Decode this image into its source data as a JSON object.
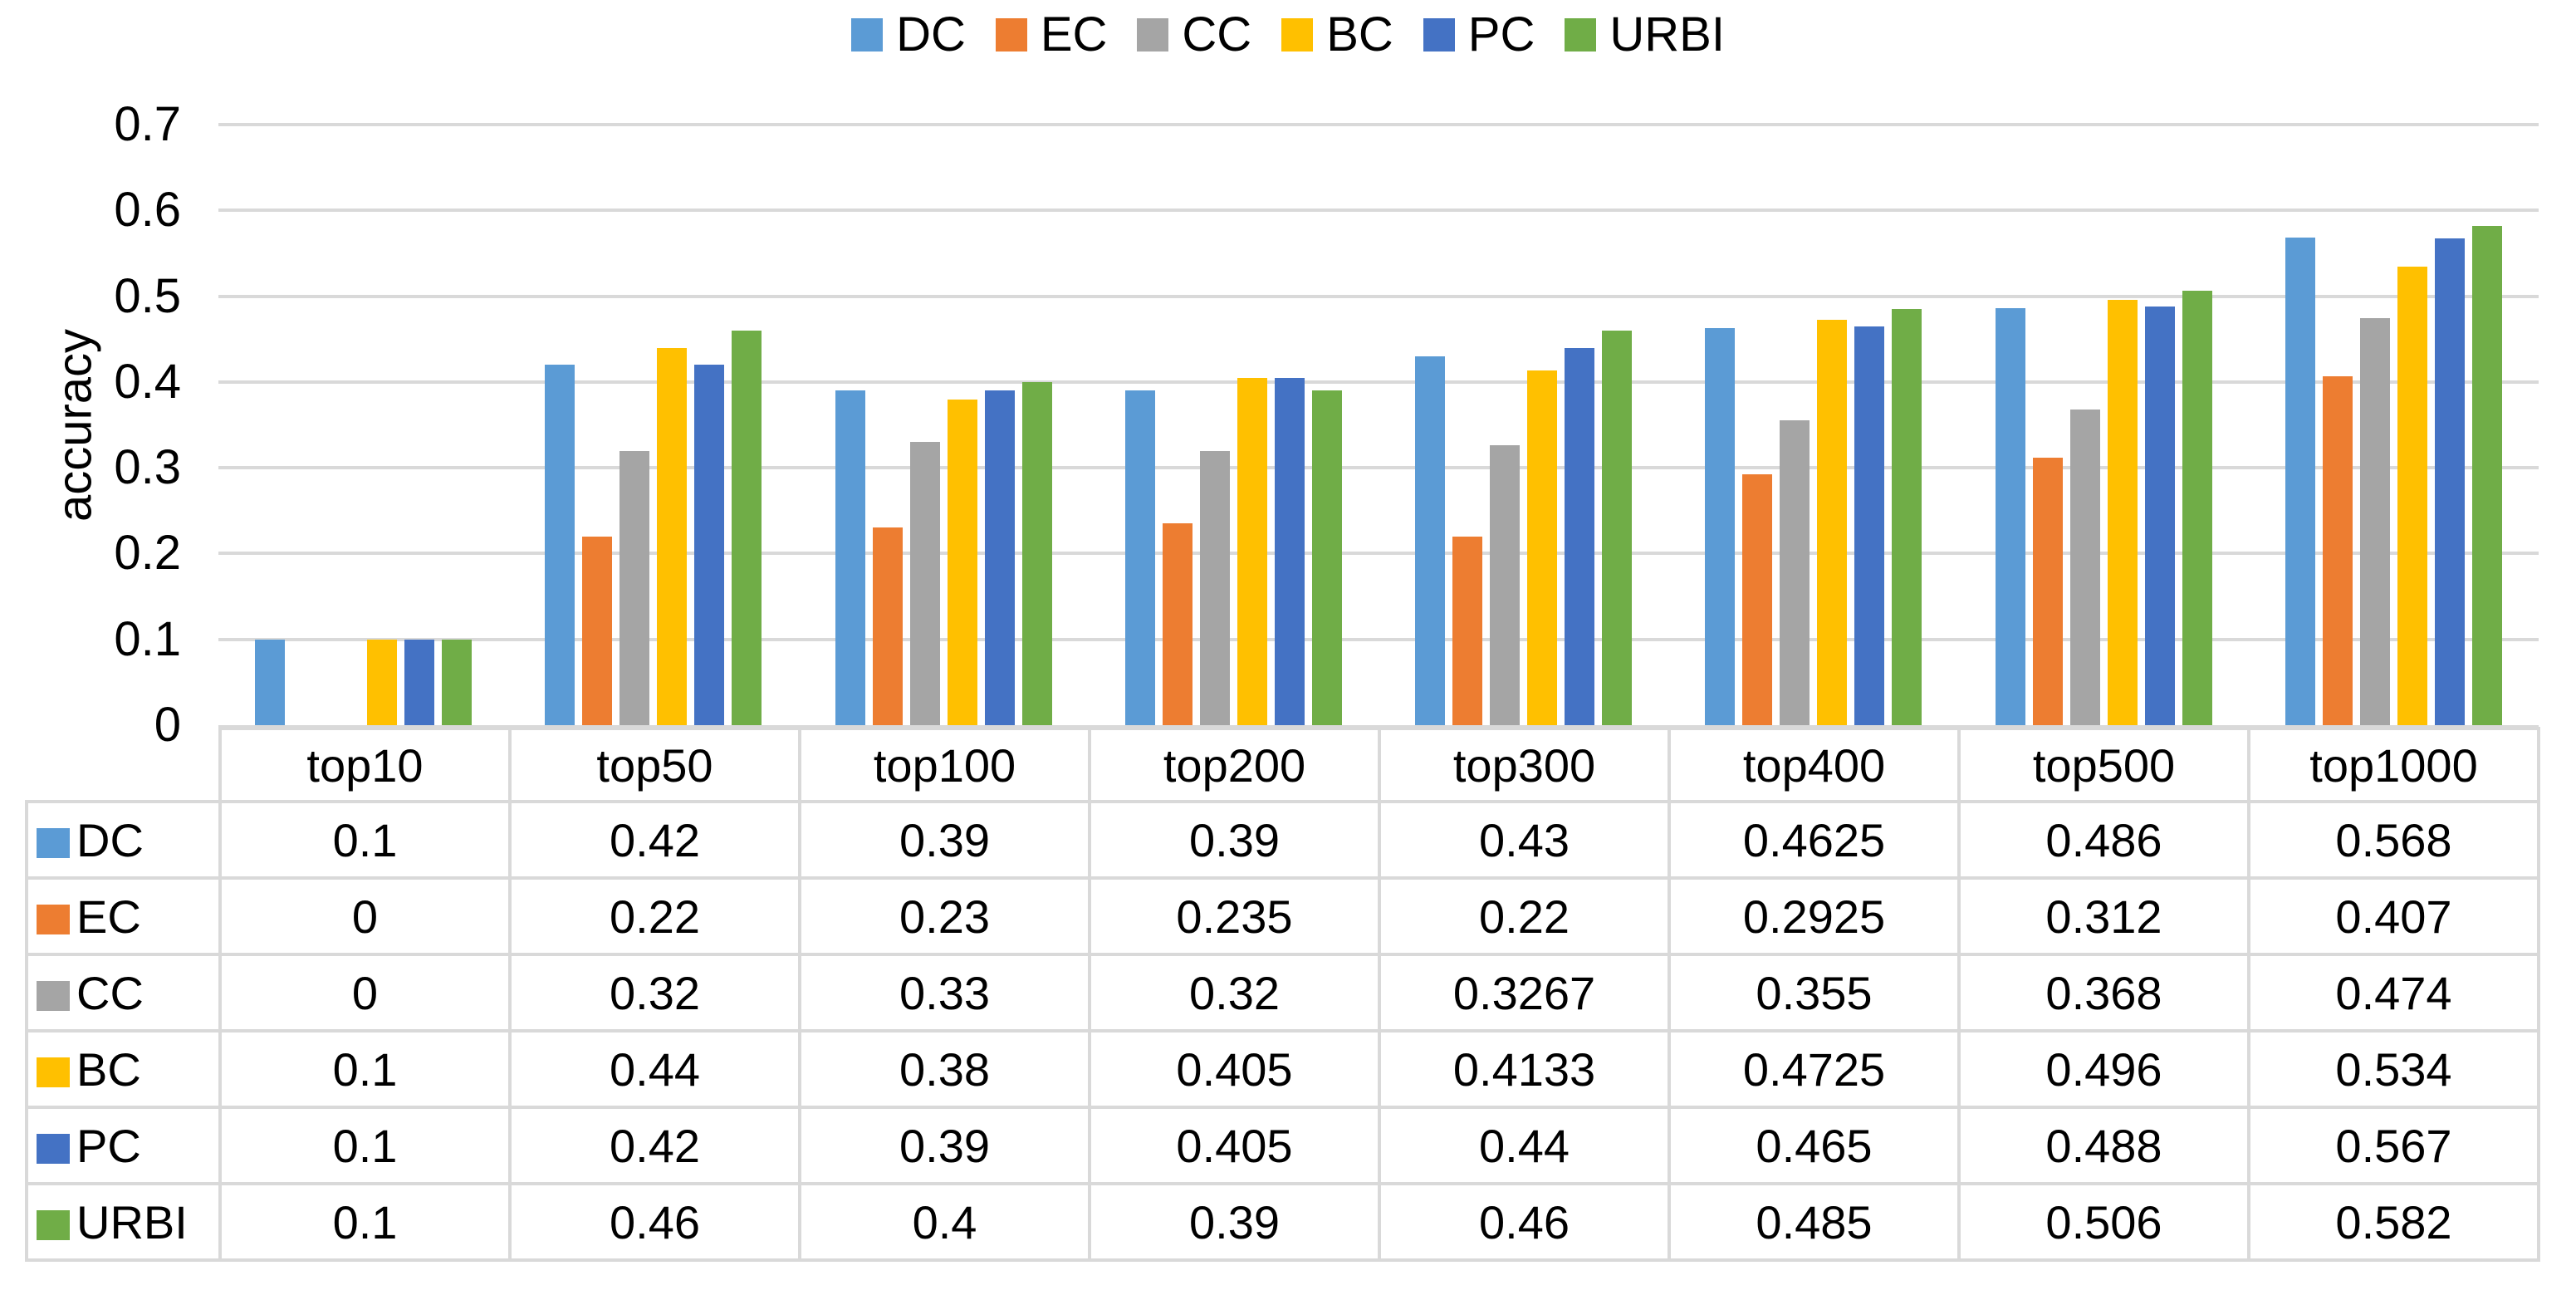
{
  "colors": {
    "background": "#FFFFFF",
    "gridline": "#D9D9D9",
    "table_border": "#D9D9D9",
    "text": "#000000"
  },
  "chart_data": {
    "type": "bar",
    "title": "",
    "xlabel": "",
    "ylabel": "accuracy",
    "ylim": [
      0,
      0.7
    ],
    "ytick_step": 0.1,
    "ytick_labels": [
      "0",
      "0.1",
      "0.2",
      "0.3",
      "0.4",
      "0.5",
      "0.6",
      "0.7"
    ],
    "grid": true,
    "legend_position": "top",
    "legend_labels": [
      "DC",
      "EC",
      "CC",
      "BC",
      "PC",
      "URBI"
    ],
    "data_table_shown": true,
    "categories": [
      "top10",
      "top50",
      "top100",
      "top200",
      "top300",
      "top400",
      "top500",
      "top1000"
    ],
    "series": [
      {
        "name": "DC",
        "color": "#5B9BD5",
        "values": [
          0.1,
          0.42,
          0.39,
          0.39,
          0.43,
          0.4625,
          0.486,
          0.568
        ]
      },
      {
        "name": "EC",
        "color": "#ED7D31",
        "values": [
          0,
          0.22,
          0.23,
          0.235,
          0.22,
          0.2925,
          0.312,
          0.407
        ]
      },
      {
        "name": "CC",
        "color": "#A5A5A5",
        "values": [
          0,
          0.32,
          0.33,
          0.32,
          0.3267,
          0.355,
          0.368,
          0.474
        ]
      },
      {
        "name": "BC",
        "color": "#FFC000",
        "values": [
          0.1,
          0.44,
          0.38,
          0.405,
          0.4133,
          0.4725,
          0.496,
          0.534
        ]
      },
      {
        "name": "PC",
        "color": "#4472C4",
        "values": [
          0.1,
          0.42,
          0.39,
          0.405,
          0.44,
          0.465,
          0.488,
          0.567
        ]
      },
      {
        "name": "URBI",
        "color": "#70AD47",
        "values": [
          0.1,
          0.46,
          0.4,
          0.39,
          0.46,
          0.485,
          0.506,
          0.582
        ]
      }
    ]
  }
}
